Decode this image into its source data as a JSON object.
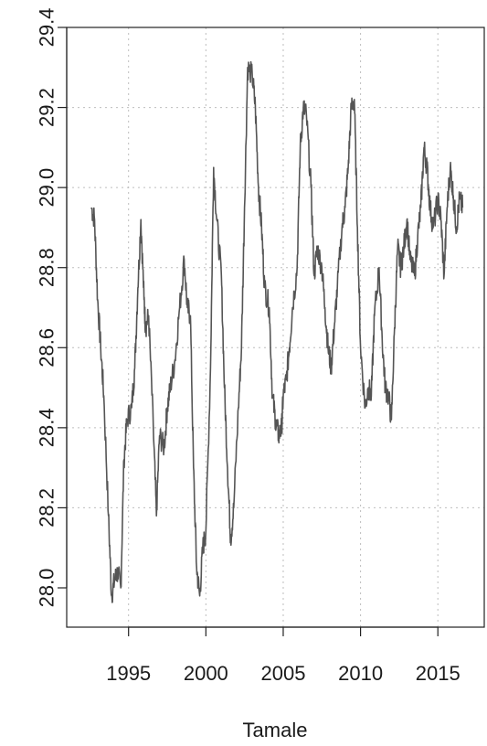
{
  "chart_data": {
    "type": "line",
    "title": "",
    "xlabel": "Tamale",
    "ylabel": "",
    "xlim": [
      1991.0,
      2018.0
    ],
    "ylim": [
      27.9,
      29.4
    ],
    "grid": true,
    "x_ticks": [
      1995,
      2000,
      2005,
      2010,
      2015
    ],
    "x_tick_labels": [
      "1995",
      "2000",
      "2005",
      "2010",
      "2015"
    ],
    "y_ticks": [
      28.0,
      28.2,
      28.4,
      28.6,
      28.8,
      29.0,
      29.2,
      29.4
    ],
    "y_tick_labels": [
      "28.0",
      "28.2",
      "28.4",
      "28.6",
      "28.8",
      "29.0",
      "29.2",
      "29.4"
    ],
    "series": [
      {
        "line_color": "#555555",
        "x": [
          1992.6,
          1992.8,
          1993.0,
          1993.2,
          1993.4,
          1993.7,
          1993.9,
          1994.1,
          1994.3,
          1994.5,
          1994.7,
          1994.9,
          1995.2,
          1995.4,
          1995.6,
          1995.8,
          1996.0,
          1996.1,
          1996.3,
          1996.6,
          1996.8,
          1997.0,
          1997.3,
          1997.5,
          1997.7,
          1998.0,
          1998.3,
          1998.6,
          1998.8,
          1999.0,
          1999.2,
          1999.4,
          1999.6,
          1999.8,
          2000.0,
          2000.3,
          2000.5,
          2000.7,
          2001.0,
          2001.2,
          2001.4,
          2001.6,
          2001.8,
          2002.1,
          2002.3,
          2002.5,
          2002.7,
          2003.0,
          2003.2,
          2003.4,
          2003.6,
          2003.8,
          2004.1,
          2004.3,
          2004.5,
          2004.7,
          2004.9,
          2005.0,
          2005.2,
          2005.4,
          2005.6,
          2005.9,
          2006.1,
          2006.3,
          2006.5,
          2006.8,
          2007.0,
          2007.2,
          2007.5,
          2007.7,
          2007.9,
          2008.1,
          2008.3,
          2008.5,
          2008.8,
          2009.0,
          2009.2,
          2009.4,
          2009.6,
          2009.8,
          2010.0,
          2010.3,
          2010.5,
          2010.7,
          2010.9,
          2011.2,
          2011.4,
          2011.6,
          2011.8,
          2012.0,
          2012.2,
          2012.4,
          2012.6,
          2012.8,
          2013.0,
          2013.2,
          2013.5,
          2013.7,
          2013.9,
          2014.1,
          2014.3,
          2014.5,
          2014.7,
          2015.0,
          2015.2,
          2015.4,
          2015.6,
          2015.8,
          2016.0,
          2016.2,
          2016.4,
          2016.6
        ],
        "y": [
          28.95,
          28.92,
          28.72,
          28.6,
          28.48,
          28.18,
          27.98,
          28.02,
          28.04,
          28.0,
          28.32,
          28.42,
          28.45,
          28.55,
          28.75,
          28.92,
          28.72,
          28.65,
          28.68,
          28.4,
          28.18,
          28.38,
          28.35,
          28.45,
          28.5,
          28.57,
          28.7,
          28.82,
          28.7,
          28.68,
          28.3,
          28.05,
          27.98,
          28.1,
          28.14,
          28.55,
          29.05,
          28.92,
          28.78,
          28.5,
          28.3,
          28.12,
          28.2,
          28.45,
          28.6,
          28.95,
          29.3,
          29.28,
          29.2,
          29.0,
          28.9,
          28.75,
          28.7,
          28.48,
          28.42,
          28.38,
          28.4,
          28.48,
          28.52,
          28.6,
          28.7,
          28.8,
          29.1,
          29.2,
          29.18,
          29.0,
          28.78,
          28.85,
          28.8,
          28.7,
          28.6,
          28.55,
          28.65,
          28.75,
          28.9,
          28.95,
          29.05,
          29.2,
          29.22,
          28.9,
          28.6,
          28.45,
          28.5,
          28.48,
          28.68,
          28.8,
          28.62,
          28.5,
          28.48,
          28.42,
          28.65,
          28.85,
          28.8,
          28.85,
          28.92,
          28.82,
          28.78,
          28.88,
          28.95,
          29.1,
          29.05,
          28.95,
          28.9,
          28.97,
          28.92,
          28.78,
          28.95,
          29.05,
          28.98,
          28.9,
          28.97,
          28.95
        ]
      }
    ]
  }
}
